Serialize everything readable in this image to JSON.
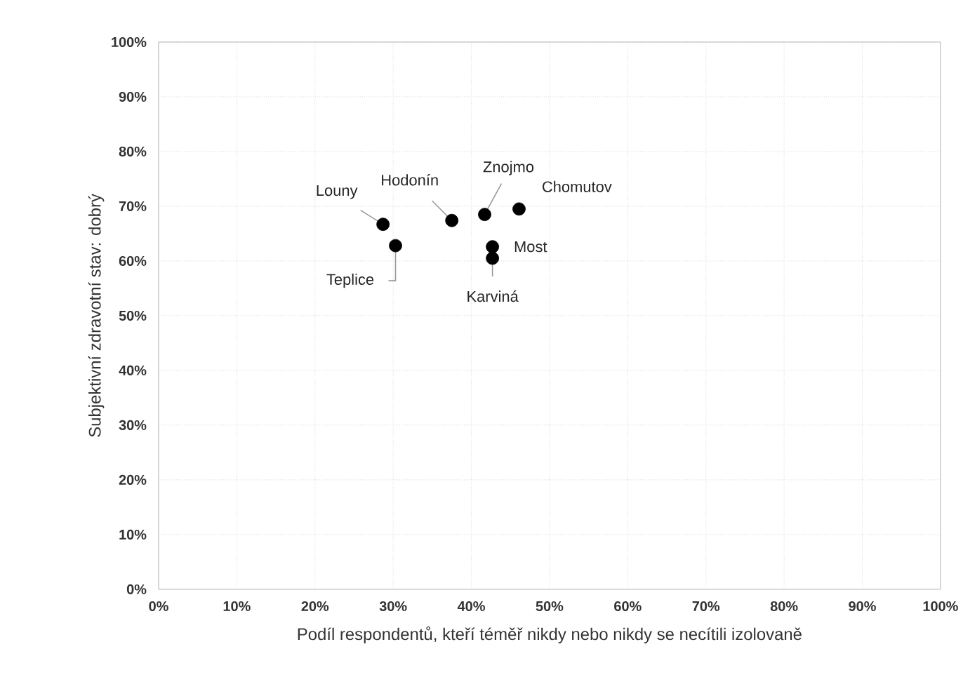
{
  "chart_data": {
    "type": "scatter",
    "xlabel": "Podíl respondentů, kteří téměř nikdy nebo nikdy se necítili izolovaně",
    "ylabel": "Subjektivní zdravotní stav: dobrý",
    "x": [
      28.7,
      30.3,
      37.5,
      41.7,
      46.1,
      42.7,
      42.7
    ],
    "values": [
      66.7,
      62.8,
      67.4,
      68.5,
      69.5,
      62.6,
      60.5
    ],
    "color": "#000000",
    "marker": "circle",
    "grid": true,
    "xlim": [
      0,
      100
    ],
    "ylim": [
      0,
      100
    ],
    "xticks": [
      {
        "value": 0,
        "label": "0%"
      },
      {
        "value": 10,
        "label": "10%"
      },
      {
        "value": 20,
        "label": "20%"
      },
      {
        "value": 30,
        "label": "30%"
      },
      {
        "value": 40,
        "label": "40%"
      },
      {
        "value": 50,
        "label": "50%"
      },
      {
        "value": 60,
        "label": "60%"
      },
      {
        "value": 70,
        "label": "70%"
      },
      {
        "value": 80,
        "label": "80%"
      },
      {
        "value": 90,
        "label": "90%"
      },
      {
        "value": 100,
        "label": "100%"
      }
    ],
    "yticks": [
      {
        "value": 0,
        "label": "0%"
      },
      {
        "value": 10,
        "label": "10%"
      },
      {
        "value": 20,
        "label": "20%"
      },
      {
        "value": 30,
        "label": "30%"
      },
      {
        "value": 40,
        "label": "40%"
      },
      {
        "value": 50,
        "label": "50%"
      },
      {
        "value": 60,
        "label": "60%"
      },
      {
        "value": 70,
        "label": "70%"
      },
      {
        "value": 80,
        "label": "80%"
      },
      {
        "value": 90,
        "label": "90%"
      },
      {
        "value": 100,
        "label": "100%"
      }
    ],
    "annotations": [
      {
        "text": "Louny",
        "x": 28.7,
        "y": 66.7
      },
      {
        "text": "Teplice",
        "x": 30.3,
        "y": 62.8
      },
      {
        "text": "Hodonín",
        "x": 37.5,
        "y": 67.4
      },
      {
        "text": "Znojmo",
        "x": 41.7,
        "y": 68.5
      },
      {
        "text": "Chomutov",
        "x": 46.1,
        "y": 69.5
      },
      {
        "text": "Most",
        "x": 42.7,
        "y": 62.6
      },
      {
        "text": "Karviná",
        "x": 42.7,
        "y": 60.5
      }
    ]
  }
}
